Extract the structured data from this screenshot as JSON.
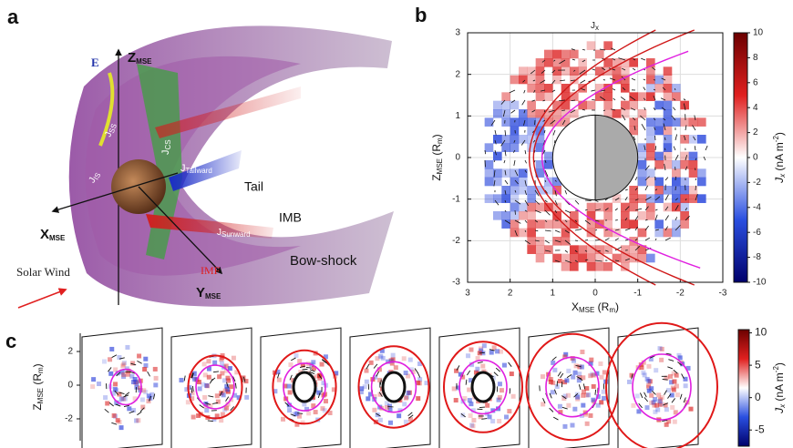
{
  "panel_labels": [
    "a",
    "b",
    "c"
  ],
  "panel_a": {
    "e_field": "E",
    "z_axis": {
      "main": "Z",
      "sub": "MSE"
    },
    "x_axis": {
      "main": "X",
      "sub": "MSE"
    },
    "y_axis": {
      "main": "Y",
      "sub": "MSE"
    },
    "j_ss": {
      "main": "J",
      "sub": "SS"
    },
    "j_is": {
      "main": "J",
      "sub": "IS"
    },
    "j_cs": {
      "main": "J",
      "sub": "CS"
    },
    "j_tailward": {
      "main": "J",
      "sub": "Tailward"
    },
    "j_sunward": {
      "main": "J",
      "sub": "Sunward"
    },
    "tail": "Tail",
    "imb": "IMB",
    "bow_shock": "Bow-shock",
    "imf": "IMF",
    "solar_wind": "Solar Wind"
  },
  "panel_b": {
    "title": {
      "main": "J",
      "sub": "x"
    },
    "xlabel": {
      "main": "X",
      "sub": "MSE",
      "unit": " (R",
      "unit_sub": "m",
      "close": ")"
    },
    "ylabel": {
      "main": "Z",
      "sub": "MSE",
      "unit": " (R",
      "unit_sub": "m",
      "close": ")"
    },
    "xlim": [
      3,
      -3
    ],
    "ylim": [
      -3,
      3
    ],
    "xticks": [
      3,
      2,
      1,
      0,
      -1,
      -2,
      -3
    ],
    "yticks": [
      3,
      2,
      1,
      0,
      -1,
      -2,
      -3
    ],
    "clim": [
      -10,
      10
    ],
    "cticks": [
      10,
      8,
      6,
      4,
      2,
      0,
      -2,
      -4,
      -6,
      -8,
      -10
    ],
    "clabel": {
      "main": "J",
      "sub": "x",
      "unit": "  (nA m",
      "sup": "-2",
      "close": ")"
    }
  },
  "panel_c": {
    "ylabel": {
      "main": "Z",
      "sub": "MSE",
      "unit": " (R",
      "unit_sub": "m",
      "close": ")"
    },
    "ylim": [
      -3.3,
      3.3
    ],
    "yticks": [
      2,
      0,
      -2
    ],
    "clim": [
      -7.5,
      10.5
    ],
    "cticks": [
      10,
      5,
      0,
      -5
    ],
    "clabel": {
      "main": "J",
      "sub": "x",
      "unit": "  (nA m",
      "sup": "-2",
      "close": ")"
    }
  }
}
